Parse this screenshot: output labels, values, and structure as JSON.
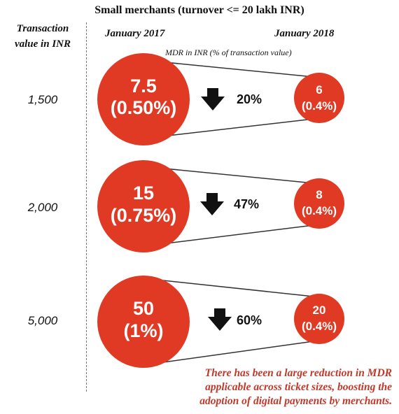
{
  "header": {
    "title": "Small merchants (turnover <= 20 lakh INR)"
  },
  "axis": {
    "title_line1": "Transaction",
    "title_line2": "value in INR"
  },
  "columns": {
    "left": "January 2017",
    "right": "January 2018"
  },
  "note": "MDR in INR (% of transaction value)",
  "rows": [
    {
      "transaction_value": "1,500",
      "mdr_2017": "7.5",
      "pct_2017": "(0.50%)",
      "mdr_2018": "6",
      "pct_2018": "(0.4%)",
      "reduction": "20%"
    },
    {
      "transaction_value": "2,000",
      "mdr_2017": "15",
      "pct_2017": "(0.75%)",
      "mdr_2018": "8",
      "pct_2018": "(0.4%)",
      "reduction": "47%"
    },
    {
      "transaction_value": "5,000",
      "mdr_2017": "50",
      "pct_2017": "(1%)",
      "mdr_2018": "20",
      "pct_2018": "(0.4%)",
      "reduction": "60%"
    }
  ],
  "footnote": {
    "line1": "There has been a large reduction in MDR",
    "line2": "applicable across ticket sizes, boosting the",
    "line3": "adoption of digital payments by merchants."
  },
  "colors": {
    "circle": "#e03a25",
    "arrow": "#111111",
    "footnote": "#c0392b"
  }
}
